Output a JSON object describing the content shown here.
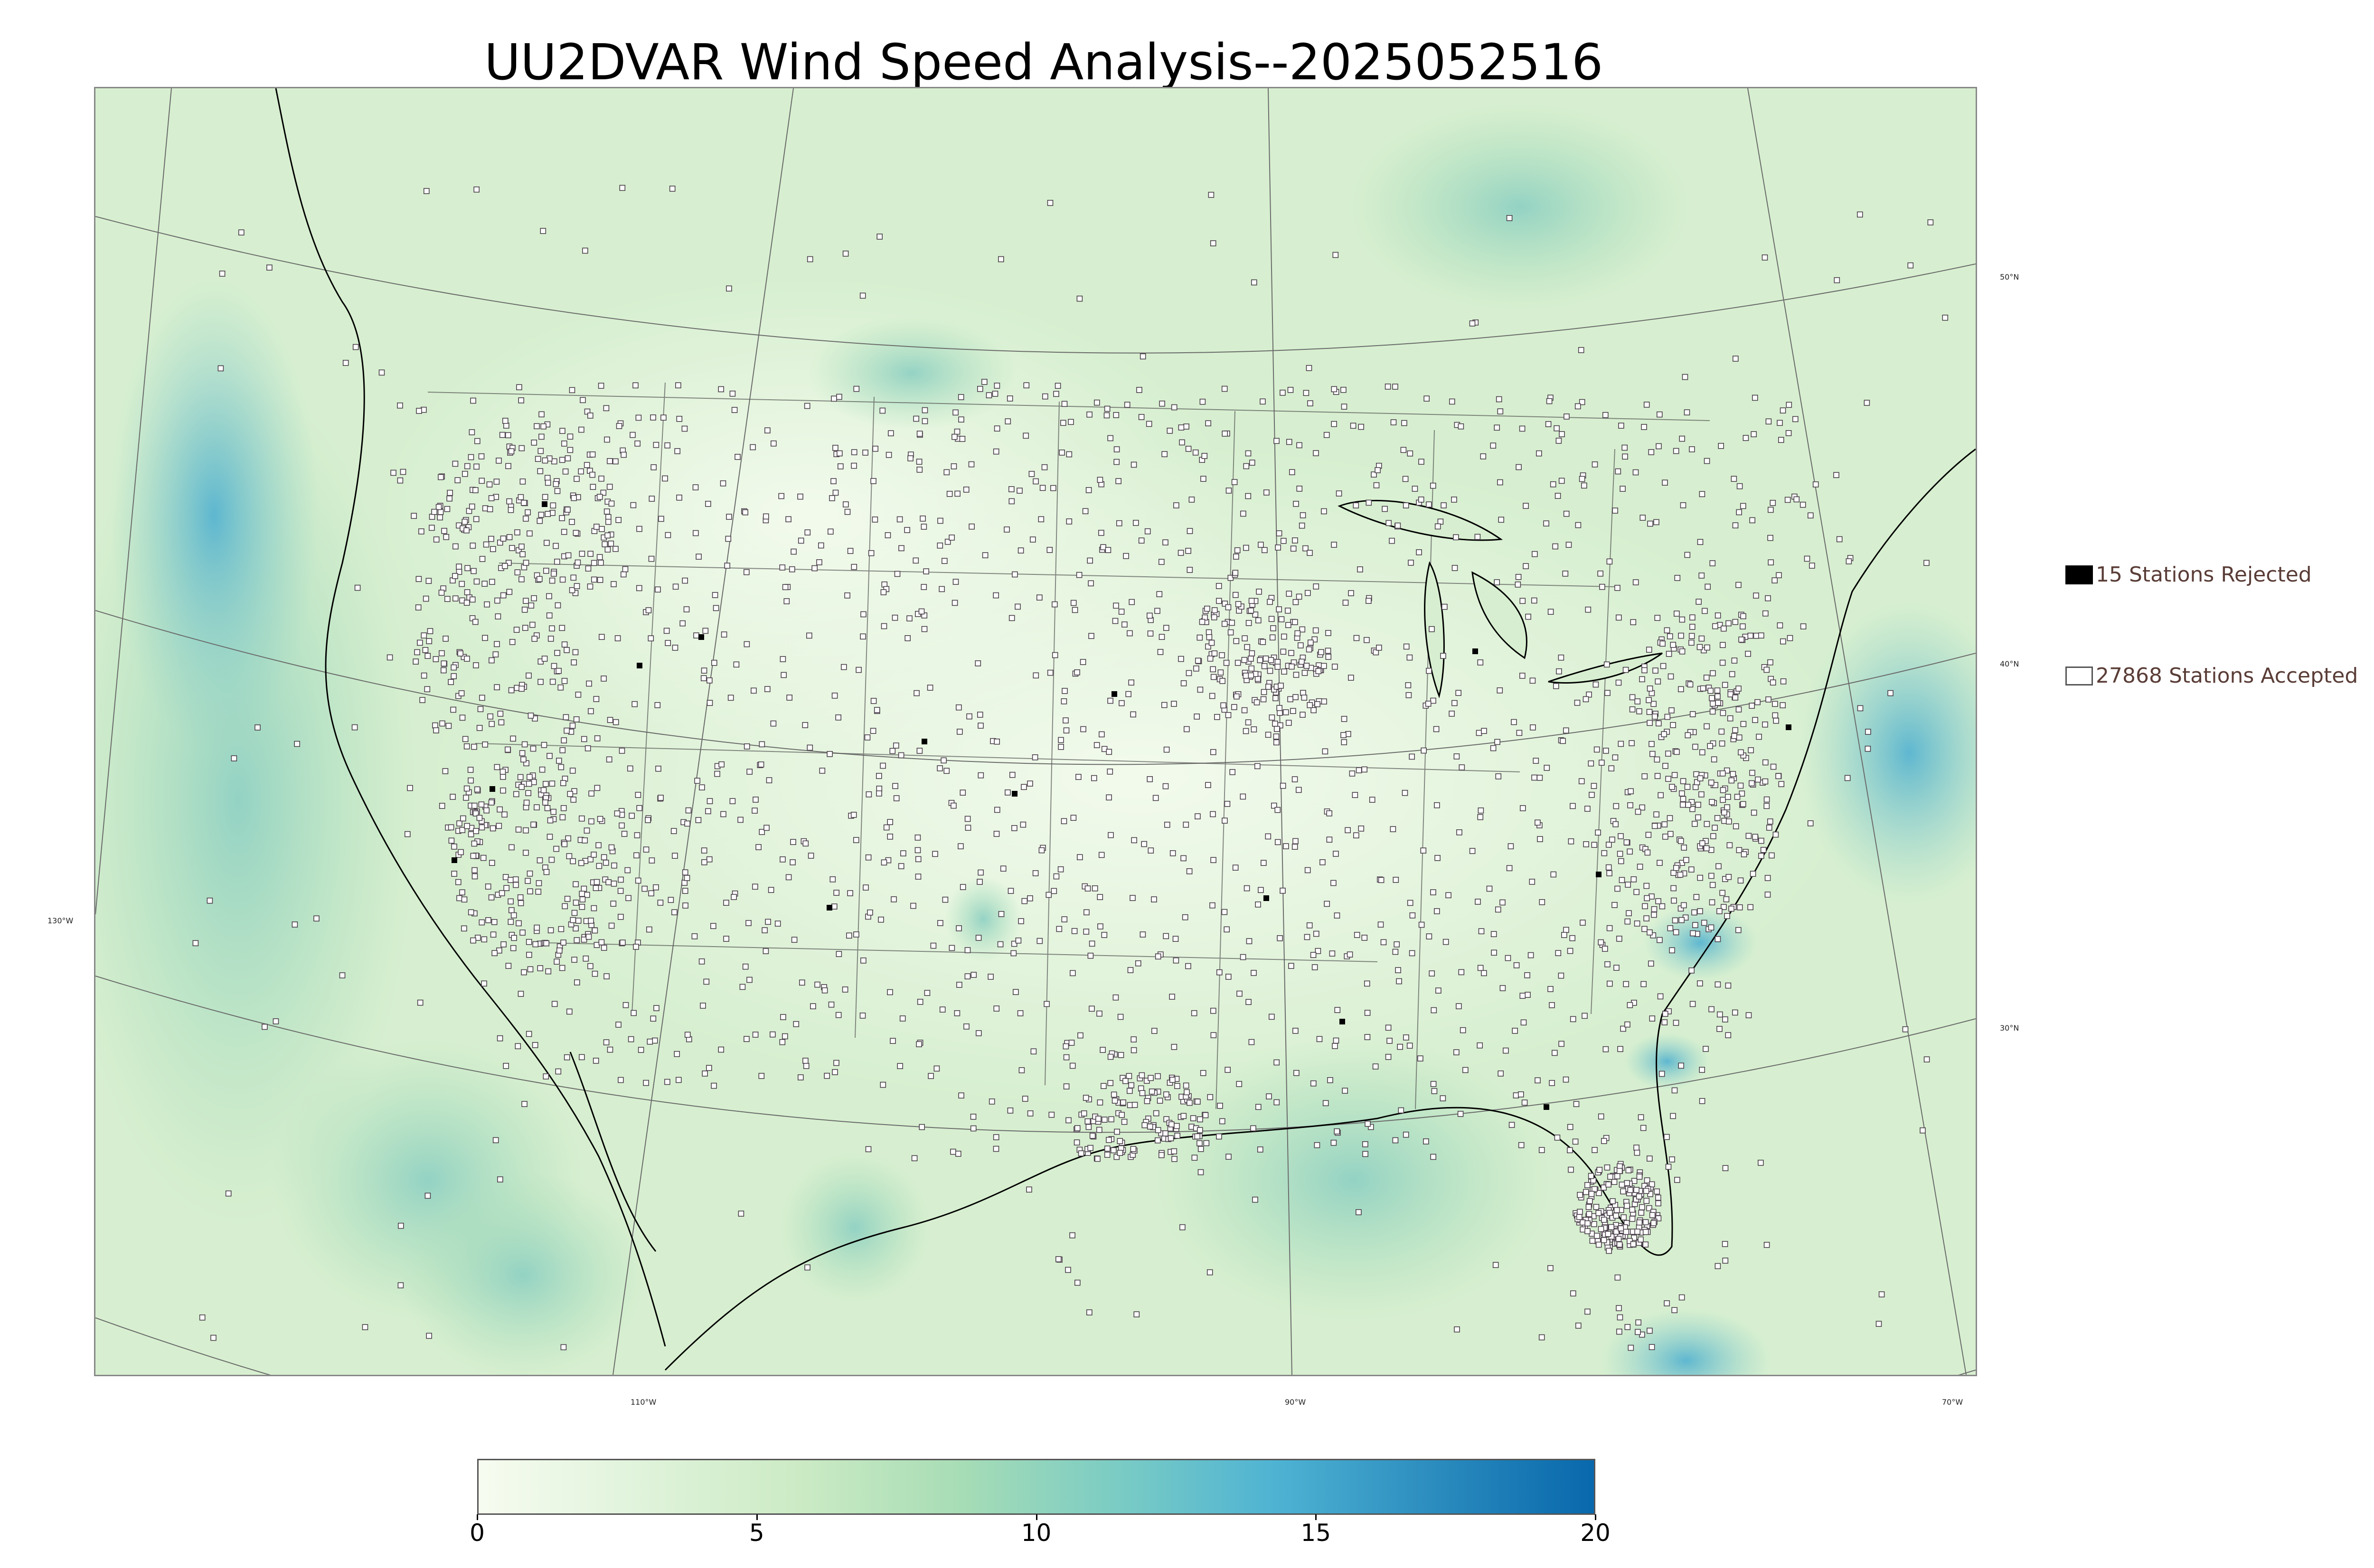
{
  "title": "UU2DVAR Wind Speed Analysis--2025052516",
  "legend": {
    "rejected_label": "15 Stations Rejected",
    "accepted_label": "27868 Stations Accepted"
  },
  "graticule": {
    "latitude_labels": [
      "50°N",
      "40°N",
      "30°N"
    ],
    "longitude_labels": [
      "130°W",
      "110°W",
      "90°W",
      "70°W"
    ]
  },
  "colorbar": {
    "ticks": [
      "0",
      "5",
      "10",
      "15",
      "20"
    ],
    "range": [
      0,
      20
    ],
    "colors": [
      "#f7fcf0",
      "#e0f3db",
      "#ccebc5",
      "#a8ddb5",
      "#7bccc4",
      "#4eb3d3",
      "#2b8cbe",
      "#0868ac"
    ]
  },
  "colors": {
    "land_fill": "#e3f4dc",
    "ocean_fill": "#cfeccb",
    "windy_fill": "#7fc6d6",
    "station_accepted": "#ffffff",
    "station_rejected": "#000000",
    "coastline": "#000000",
    "border": "#444444"
  }
}
